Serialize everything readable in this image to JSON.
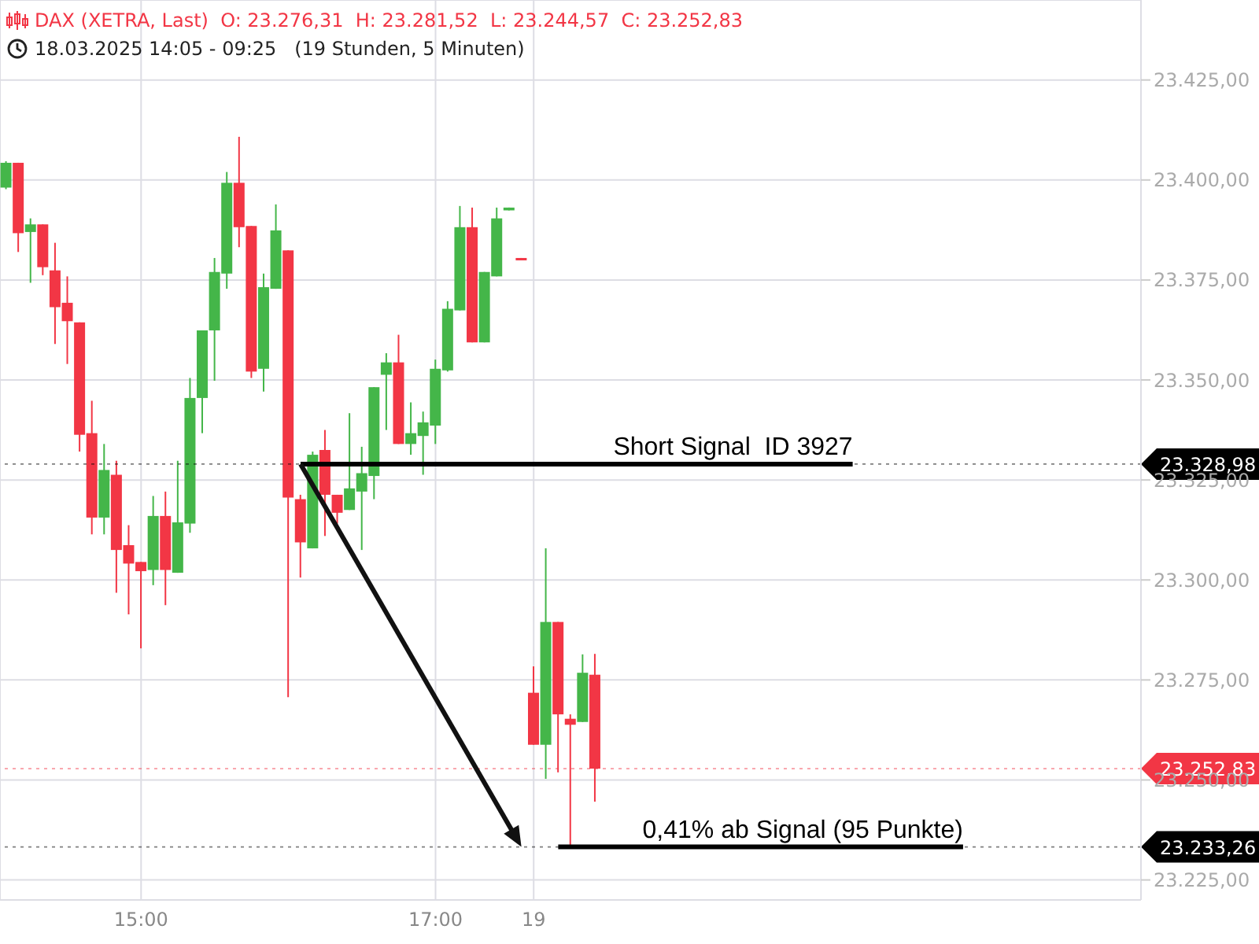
{
  "chart_data": {
    "type": "candlestick",
    "title": "DAX (XETRA, Last)  O: 23.276,31  H: 23.281,52  L: 23.244,57  C: 23.252,83",
    "subtitle": "18.03.2025 14:05 - 09:25   (19 Stunden, 5 Minuten)",
    "categories": [
      null,
      null,
      null,
      null,
      null,
      null,
      null,
      null,
      null,
      null,
      null,
      "15:00",
      null,
      null,
      null,
      null,
      null,
      null,
      null,
      null,
      null,
      null,
      null,
      null,
      null,
      null,
      null,
      null,
      null,
      null,
      null,
      null,
      null,
      null,
      null,
      "17:00",
      null,
      null,
      null,
      null,
      null,
      null,
      null,
      "19",
      null,
      null,
      null,
      null,
      null,
      null,
      null,
      null,
      null,
      null,
      null,
      null,
      null,
      null,
      null,
      null,
      null,
      null,
      null,
      null,
      null,
      null,
      null,
      null,
      null,
      null,
      null,
      null,
      null,
      null,
      null,
      null,
      null,
      null,
      null,
      null,
      null,
      null,
      null,
      null,
      null,
      null,
      null,
      null,
      null,
      null,
      null,
      null,
      null
    ],
    "ohlc": [
      [
        23398.1,
        23404.7,
        23397.7,
        23404.3
      ],
      [
        23404.3,
        23404.3,
        23382.0,
        23386.7
      ],
      [
        23387.0,
        23390.4,
        23374.3,
        23388.9
      ],
      [
        23388.9,
        23388.9,
        23376.2,
        23378.2
      ],
      [
        23377.4,
        23384.3,
        23359.0,
        23368.2
      ],
      [
        23369.3,
        23375.9,
        23354.0,
        23364.7
      ],
      [
        23364.4,
        23364.4,
        23332.1,
        23336.3
      ],
      [
        23336.7,
        23344.8,
        23311.4,
        23315.6
      ],
      [
        23315.6,
        23334.0,
        23311.4,
        23327.5
      ],
      [
        23326.3,
        23329.8,
        23296.8,
        23307.5
      ],
      [
        23308.7,
        23313.7,
        23291.4,
        23304.1
      ],
      [
        23304.5,
        23304.5,
        23282.9,
        23302.2
      ],
      [
        23302.5,
        23321.0,
        23298.7,
        23316.0
      ],
      [
        23316.0,
        23322.1,
        23293.7,
        23302.5
      ],
      [
        23301.8,
        23329.8,
        23301.8,
        23314.4
      ],
      [
        23314.1,
        23350.5,
        23311.8,
        23345.5
      ],
      [
        23345.5,
        23362.4,
        23336.7,
        23362.4
      ],
      [
        23362.4,
        23380.5,
        23349.8,
        23377.0
      ],
      [
        23376.6,
        23402.0,
        23372.8,
        23399.3
      ],
      [
        23399.3,
        23410.8,
        23383.2,
        23388.2
      ],
      [
        23388.5,
        23388.5,
        23350.5,
        23352.1
      ],
      [
        23352.8,
        23376.6,
        23347.1,
        23373.2
      ],
      [
        23372.8,
        23393.9,
        23372.8,
        23387.4
      ],
      [
        23382.4,
        23382.4,
        23270.7,
        23320.6
      ],
      [
        23320.2,
        23321.3,
        23300.6,
        23309.4
      ],
      [
        23307.9,
        23332.1,
        23307.9,
        23331.3
      ],
      [
        23332.5,
        23337.5,
        23311.0,
        23321.3
      ],
      [
        23321.3,
        23321.3,
        23314.1,
        23316.8
      ],
      [
        23317.5,
        23341.7,
        23317.5,
        23322.9
      ],
      [
        23322.1,
        23333.3,
        23307.5,
        23326.7
      ],
      [
        23326.0,
        23348.2,
        23320.2,
        23348.2
      ],
      [
        23351.3,
        23356.7,
        23337.5,
        23354.4
      ],
      [
        23354.4,
        23361.3,
        23334.0,
        23334.0
      ],
      [
        23334.0,
        23344.4,
        23331.3,
        23336.7
      ],
      [
        23336.0,
        23342.1,
        23326.3,
        23339.4
      ],
      [
        23338.6,
        23355.1,
        23334.0,
        23352.8
      ],
      [
        23352.4,
        23369.7,
        23352.1,
        23367.8
      ],
      [
        23367.4,
        23393.5,
        23367.4,
        23388.2
      ],
      [
        23388.2,
        23393.1,
        23359.4,
        23359.4
      ],
      [
        23359.4,
        23377.0,
        23359.4,
        23377.0
      ],
      [
        23375.9,
        23393.1,
        23375.9,
        23390.4
      ],
      [
        23392.4,
        23393.1,
        23392.4,
        23393.1
      ],
      [
        23380.5,
        23380.5,
        23380.1,
        23380.1
      ],
      [
        23271.8,
        23278.4,
        23258.8,
        23258.8
      ],
      [
        23258.8,
        23307.9,
        23250.3,
        23289.5
      ],
      [
        23289.5,
        23289.5,
        23251.9,
        23266.4
      ],
      [
        23265.3,
        23266.4,
        23233.4,
        23263.8
      ],
      [
        23264.5,
        23281.4,
        23264.5,
        23276.8
      ],
      [
        23276.31,
        23281.52,
        23244.57,
        23252.83
      ],
      null,
      null,
      null,
      null,
      null,
      null,
      null,
      null,
      null,
      null,
      null,
      null,
      null,
      null,
      null,
      null,
      null,
      null,
      null,
      null,
      null,
      null,
      null,
      null,
      null,
      null,
      null,
      null,
      null,
      null,
      null,
      null,
      null,
      null,
      null,
      null,
      null,
      null,
      null,
      null,
      null,
      null,
      null,
      null
    ],
    "ylim": [
      23220,
      23445
    ],
    "yticks": [
      {
        "value": 23225,
        "label": "23.225,00"
      },
      {
        "value": 23250,
        "label": "23.250,00"
      },
      {
        "value": 23275,
        "label": "23.275,00"
      },
      {
        "value": 23300,
        "label": "23.300,00"
      },
      {
        "value": 23325,
        "label": "23.325,00"
      },
      {
        "value": 23350,
        "label": "23.350,00"
      },
      {
        "value": 23375,
        "label": "23.375,00"
      },
      {
        "value": 23400,
        "label": "23.400,00"
      },
      {
        "value": 23425,
        "label": "23.425,00"
      }
    ],
    "grid": true,
    "ref_lines": [
      {
        "axis": "y",
        "value": 23328.98,
        "label": "23.328,98",
        "color": "#000000"
      },
      {
        "axis": "y",
        "value": 23252.83,
        "label": "23.252,83",
        "color": "#f23645"
      },
      {
        "axis": "y",
        "value": 23233.26,
        "label": "23.233,26",
        "color": "#000000"
      }
    ],
    "annotations": [
      {
        "text": "Short Signal  ID 3927",
        "y": 23328.98
      },
      {
        "text": "0,41% ab Signal (95 Punkte)",
        "y": 23233.26
      }
    ]
  }
}
